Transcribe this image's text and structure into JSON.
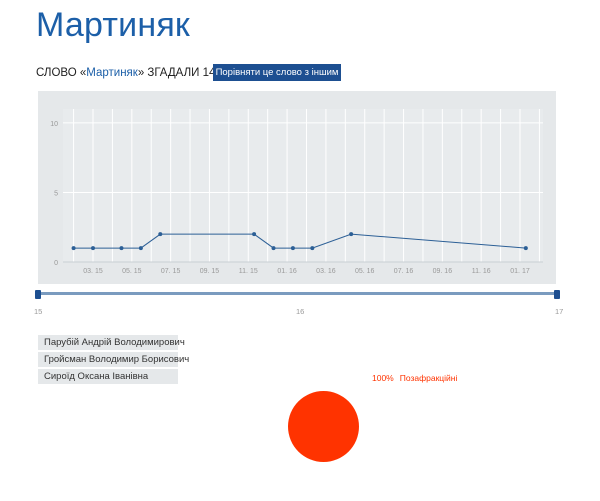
{
  "page": {
    "title": "Мартиняк",
    "mention": {
      "prefix": "СЛОВО «",
      "word": "Мартиняк",
      "suffix": "» ЗГАДАЛИ 14 РАЗ"
    },
    "compare_button_label": "Порівняти це слово з іншим"
  },
  "chart_data": {
    "type": "line",
    "x_labels": [
      "03. 15",
      "05. 15",
      "07. 15",
      "09. 15",
      "11. 15",
      "01. 16",
      "03. 16",
      "05. 16",
      "07. 16",
      "09. 16",
      "11. 16",
      "01. 17"
    ],
    "y_ticks": [
      0,
      5,
      10
    ],
    "ylim": [
      0,
      11
    ],
    "grid": true,
    "series": [
      {
        "color": "#2c5f96",
        "points": [
          {
            "x": "2015-02-01",
            "y": 1
          },
          {
            "x": "2015-03-01",
            "y": 1
          },
          {
            "x": "2015-04-15",
            "y": 1
          },
          {
            "x": "2015-05-15",
            "y": 1
          },
          {
            "x": "2015-06-15",
            "y": 2
          },
          {
            "x": "2015-11-10",
            "y": 2
          },
          {
            "x": "2015-12-10",
            "y": 1
          },
          {
            "x": "2016-01-10",
            "y": 1
          },
          {
            "x": "2016-02-10",
            "y": 1
          },
          {
            "x": "2016-04-10",
            "y": 2
          },
          {
            "x": "2017-01-10",
            "y": 1
          }
        ]
      }
    ]
  },
  "range": {
    "labels": [
      "15",
      "16",
      "17"
    ]
  },
  "people": [
    "Парубій Андрій Володимирович",
    "Гройсман Володимир Борисович",
    "Сироїд Оксана Іванівна"
  ],
  "pie": {
    "slices": [
      {
        "label": "Позафракційні",
        "percent_text": "100%",
        "value": 100,
        "color": "#ff3300"
      }
    ]
  }
}
